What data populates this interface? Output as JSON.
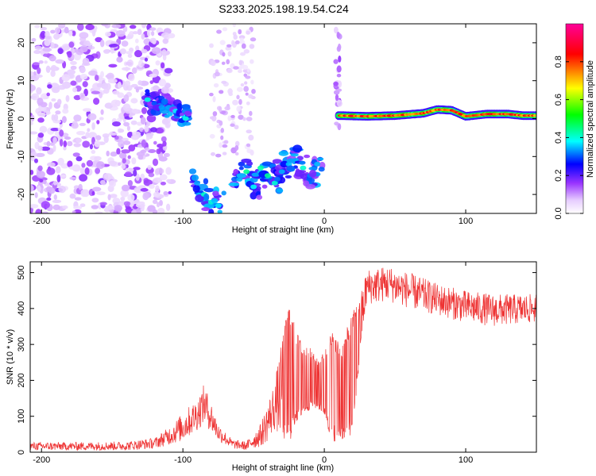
{
  "figure_title": "S233.2025.198.19.54.C24",
  "chart_data": [
    {
      "type": "heatmap",
      "title": "",
      "xlabel": "Height of straight line (km)",
      "ylabel": "Frequency (Hz)",
      "xlim": [
        -208,
        150
      ],
      "ylim": [
        -25,
        25
      ],
      "xticks": [
        -200,
        -100,
        0,
        100
      ],
      "yticks": [
        -20,
        -10,
        0,
        10,
        20
      ],
      "colorbar": {
        "label": "Normalized spectral amplitude",
        "range": [
          0,
          1
        ],
        "ticks": [
          0.0,
          0.2,
          0.4,
          0.6,
          0.8
        ],
        "colors": [
          "#ffffff",
          "#e6ccff",
          "#9933ff",
          "#0000ff",
          "#00ffff",
          "#00ff00",
          "#ffff00",
          "#ff0000",
          "#ff0099"
        ]
      },
      "features": [
        {
          "label": "noise",
          "x": [
            -208,
            -110
          ],
          "y": [
            -25,
            25
          ],
          "level": 0.1
        },
        {
          "label": "patch",
          "x": [
            -125,
            -95
          ],
          "y": [
            -2,
            8
          ],
          "level": 0.45
        },
        {
          "label": "patch",
          "x": [
            -93,
            -55
          ],
          "y": [
            -25,
            -12
          ],
          "level": 0.4
        },
        {
          "label": "patch",
          "x": [
            -55,
            -5
          ],
          "y": [
            -22,
            -10
          ],
          "level": 0.45
        },
        {
          "label": "line",
          "x": [
            10,
            150
          ],
          "y": [
            0,
            2
          ],
          "level": 0.9
        }
      ],
      "line_points": [
        {
          "x": 10,
          "y": 0.8
        },
        {
          "x": 30,
          "y": 0.6
        },
        {
          "x": 50,
          "y": 0.8
        },
        {
          "x": 70,
          "y": 1.4
        },
        {
          "x": 80,
          "y": 2.4
        },
        {
          "x": 90,
          "y": 2.2
        },
        {
          "x": 100,
          "y": 0.6
        },
        {
          "x": 115,
          "y": 1.2
        },
        {
          "x": 130,
          "y": 1.2
        },
        {
          "x": 140,
          "y": 0.8
        },
        {
          "x": 150,
          "y": 0.8
        }
      ]
    },
    {
      "type": "line",
      "title": "",
      "xlabel": "Height of straight line (km)",
      "ylabel": "SNR (10 * v/v)",
      "xlim": [
        -208,
        150
      ],
      "ylim": [
        0,
        530
      ],
      "xticks": [
        -200,
        -100,
        0,
        100
      ],
      "yticks": [
        0,
        100,
        200,
        300,
        400,
        500
      ],
      "color": "#ee3333",
      "envelope": [
        {
          "x": -208,
          "lo": 5,
          "hi": 28
        },
        {
          "x": -180,
          "lo": 5,
          "hi": 28
        },
        {
          "x": -140,
          "lo": 5,
          "hi": 30
        },
        {
          "x": -120,
          "lo": 10,
          "hi": 40
        },
        {
          "x": -110,
          "lo": 20,
          "hi": 70
        },
        {
          "x": -100,
          "lo": 30,
          "hi": 110
        },
        {
          "x": -90,
          "lo": 60,
          "hi": 150
        },
        {
          "x": -85,
          "lo": 80,
          "hi": 190
        },
        {
          "x": -80,
          "lo": 55,
          "hi": 140
        },
        {
          "x": -75,
          "lo": 30,
          "hi": 80
        },
        {
          "x": -65,
          "lo": 10,
          "hi": 35
        },
        {
          "x": -55,
          "lo": 5,
          "hi": 30
        },
        {
          "x": -45,
          "lo": 15,
          "hi": 80
        },
        {
          "x": -40,
          "lo": 30,
          "hi": 140
        },
        {
          "x": -35,
          "lo": 60,
          "hi": 200
        },
        {
          "x": -30,
          "lo": 40,
          "hi": 310
        },
        {
          "x": -25,
          "lo": 20,
          "hi": 420
        },
        {
          "x": -20,
          "lo": 80,
          "hi": 340
        },
        {
          "x": -15,
          "lo": 100,
          "hi": 300
        },
        {
          "x": -10,
          "lo": 120,
          "hi": 290
        },
        {
          "x": -5,
          "lo": 120,
          "hi": 260
        },
        {
          "x": 0,
          "lo": 100,
          "hi": 280
        },
        {
          "x": 5,
          "lo": 30,
          "hi": 340
        },
        {
          "x": 12,
          "lo": 30,
          "hi": 300
        },
        {
          "x": 20,
          "lo": 50,
          "hi": 390
        },
        {
          "x": 25,
          "lo": 250,
          "hi": 430
        },
        {
          "x": 30,
          "lo": 410,
          "hi": 510
        },
        {
          "x": 45,
          "lo": 420,
          "hi": 520
        },
        {
          "x": 60,
          "lo": 400,
          "hi": 500
        },
        {
          "x": 80,
          "lo": 380,
          "hi": 470
        },
        {
          "x": 100,
          "lo": 360,
          "hi": 450
        },
        {
          "x": 120,
          "lo": 350,
          "hi": 440
        },
        {
          "x": 150,
          "lo": 360,
          "hi": 440
        }
      ]
    }
  ]
}
